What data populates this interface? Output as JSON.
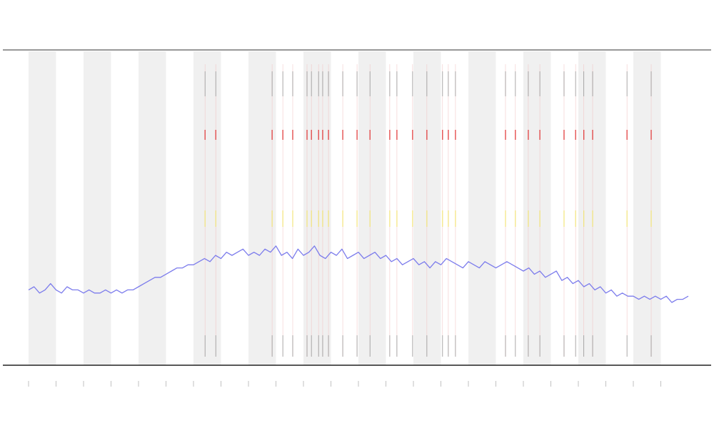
{
  "chart_data": {
    "type": "line",
    "x": [
      0,
      2,
      4,
      6,
      8,
      10,
      12,
      14,
      16,
      18,
      20,
      22,
      24,
      26,
      28,
      30,
      32,
      34,
      36,
      38,
      40,
      42,
      44,
      46,
      48,
      50,
      52,
      54,
      56,
      58,
      60,
      62,
      64,
      66,
      68,
      70,
      72,
      74,
      76,
      78,
      80,
      82,
      84,
      86,
      88,
      90,
      92,
      94,
      96,
      98,
      100,
      102,
      104,
      106,
      108,
      110,
      112,
      114,
      116,
      118,
      120,
      122,
      124,
      126,
      128,
      130,
      132,
      134,
      136,
      138,
      140,
      142,
      144,
      146,
      148,
      150,
      152,
      154,
      156,
      158,
      160,
      162,
      164,
      166,
      168,
      170,
      172,
      174,
      176,
      178,
      180,
      182,
      184,
      186,
      188,
      190,
      192,
      194,
      196,
      198,
      200,
      202,
      204,
      206,
      208,
      210,
      212,
      214,
      216,
      218,
      220,
      222,
      224,
      226,
      228,
      230,
      232,
      234,
      236,
      238,
      240
    ],
    "values": [
      24,
      25,
      23,
      24,
      26,
      24,
      23,
      25,
      24,
      24,
      23,
      24,
      23,
      23,
      24,
      23,
      24,
      23,
      24,
      24,
      25,
      26,
      27,
      28,
      28,
      29,
      30,
      31,
      31,
      32,
      32,
      33,
      34,
      33,
      35,
      34,
      36,
      35,
      36,
      37,
      35,
      36,
      35,
      37,
      36,
      38,
      35,
      36,
      34,
      37,
      35,
      36,
      38,
      35,
      34,
      36,
      35,
      37,
      34,
      35,
      36,
      34,
      35,
      36,
      34,
      35,
      33,
      34,
      32,
      33,
      34,
      32,
      33,
      31,
      33,
      32,
      34,
      33,
      32,
      31,
      33,
      32,
      31,
      33,
      32,
      31,
      32,
      33,
      32,
      31,
      30,
      31,
      29,
      30,
      28,
      29,
      30,
      27,
      28,
      26,
      27,
      25,
      26,
      24,
      25,
      23,
      24,
      22,
      23,
      22,
      22,
      21,
      22,
      21,
      22,
      21,
      22,
      20,
      21,
      21,
      22
    ],
    "color": "#7c7cec",
    "events": [
      64.2,
      68.1,
      88.6,
      92.5,
      96.1,
      101.3,
      102.9,
      105.5,
      107,
      109.1,
      114.3,
      119.5,
      124.2,
      131.4,
      134,
      139.7,
      144.9,
      150.6,
      152.7,
      155.3,
      173.5,
      177.1,
      181.8,
      186,
      194.8,
      199,
      202,
      205.2,
      217.7,
      226.5
    ],
    "event_color": "#e03030",
    "bands": [
      [
        0,
        10
      ],
      [
        20,
        30
      ],
      [
        40,
        50
      ],
      [
        60,
        70
      ],
      [
        80,
        90
      ],
      [
        100,
        110
      ],
      [
        120,
        130
      ],
      [
        140,
        150
      ],
      [
        160,
        170
      ],
      [
        180,
        190
      ],
      [
        200,
        210
      ],
      [
        220,
        230
      ]
    ],
    "xlim": [
      0,
      240
    ],
    "ylim": [
      0,
      100
    ],
    "xticks": [
      0,
      10,
      20,
      30,
      40,
      50,
      60,
      70,
      80,
      90,
      100,
      110,
      120,
      130,
      140,
      150,
      160,
      170,
      180,
      190,
      200,
      210,
      220,
      230
    ]
  }
}
